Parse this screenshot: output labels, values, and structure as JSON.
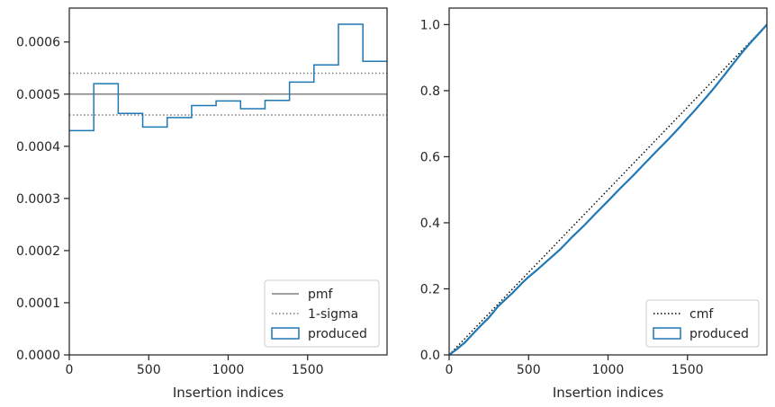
{
  "chart_data": [
    {
      "type": "step",
      "xlabel": "Insertion indices",
      "ylabel": "",
      "xlim": [
        0,
        2000
      ],
      "ylim": [
        0,
        0.000665
      ],
      "xticks": [
        0,
        500,
        1000,
        1500
      ],
      "xtick_labels": [
        "0",
        "500",
        "1000",
        "1500"
      ],
      "yticks": [
        0,
        0.0001,
        0.0002,
        0.0003,
        0.0004,
        0.0005,
        0.0006
      ],
      "ytick_labels": [
        "0.0000",
        "0.0001",
        "0.0002",
        "0.0003",
        "0.0004",
        "0.0005",
        "0.0006"
      ],
      "grid": false,
      "legend_position": "lower-right",
      "reference_lines": [
        {
          "name": "pmf",
          "y": 0.0005,
          "style": "solid",
          "color": "#808080"
        },
        {
          "name": "1-sigma",
          "y": 0.00054,
          "style": "dotted",
          "color": "#808080"
        },
        {
          "name": "1-sigma",
          "y": 0.00046,
          "style": "dotted",
          "color": "#808080"
        }
      ],
      "histogram": {
        "name": "produced",
        "color": "#1f77b4",
        "bin_edges": [
          0,
          154,
          308,
          462,
          616,
          770,
          924,
          1078,
          1232,
          1386,
          1540,
          1694,
          1848,
          2000
        ],
        "values": [
          0.00043,
          0.00052,
          0.000463,
          0.000437,
          0.000455,
          0.000478,
          0.000487,
          0.000472,
          0.000488,
          0.000523,
          0.000556,
          0.000634,
          0.000563
        ]
      },
      "legend": [
        {
          "label": "pmf",
          "kind": "line-solid",
          "color": "#808080"
        },
        {
          "label": "1-sigma",
          "kind": "line-dotted",
          "color": "#808080"
        },
        {
          "label": "produced",
          "kind": "patch",
          "color": "#1f77b4"
        }
      ]
    },
    {
      "type": "line",
      "xlabel": "Insertion indices",
      "ylabel": "",
      "xlim": [
        0,
        2000
      ],
      "ylim": [
        0,
        1.05
      ],
      "xticks": [
        0,
        500,
        1000,
        1500
      ],
      "xtick_labels": [
        "0",
        "500",
        "1000",
        "1500"
      ],
      "yticks": [
        0,
        0.2,
        0.4,
        0.6,
        0.8,
        1.0
      ],
      "ytick_labels": [
        "0.0",
        "0.2",
        "0.4",
        "0.6",
        "0.8",
        "1.0"
      ],
      "grid": false,
      "legend_position": "lower-right",
      "series": [
        {
          "name": "cmf",
          "style": "dotted",
          "color": "#000000",
          "x": [
            0,
            2000
          ],
          "y": [
            0,
            1.0
          ]
        },
        {
          "name": "produced",
          "style": "solid",
          "color": "#1f77b4",
          "x": [
            0,
            50,
            100,
            154,
            200,
            250,
            308,
            350,
            400,
            462,
            500,
            550,
            616,
            700,
            770,
            850,
            924,
            1000,
            1078,
            1150,
            1232,
            1300,
            1386,
            1450,
            1500,
            1540,
            1600,
            1650,
            1694,
            1750,
            1800,
            1848,
            1900,
            1950,
            2000
          ],
          "y": [
            0,
            0.018,
            0.038,
            0.066,
            0.089,
            0.113,
            0.147,
            0.166,
            0.188,
            0.219,
            0.236,
            0.256,
            0.284,
            0.32,
            0.355,
            0.392,
            0.429,
            0.466,
            0.505,
            0.539,
            0.58,
            0.614,
            0.656,
            0.689,
            0.716,
            0.737,
            0.77,
            0.798,
            0.824,
            0.858,
            0.889,
            0.918,
            0.947,
            0.973,
            1.0
          ]
        }
      ],
      "legend": [
        {
          "label": "cmf",
          "kind": "line-dotted",
          "color": "#000000"
        },
        {
          "label": "produced",
          "kind": "patch",
          "color": "#1f77b4"
        }
      ]
    }
  ]
}
